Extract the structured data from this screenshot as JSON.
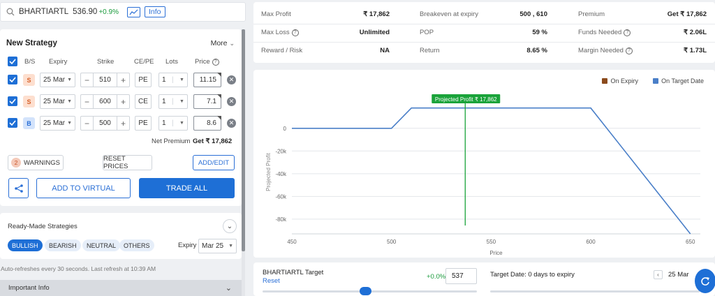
{
  "header": {
    "symbol": "BHARTIARTL",
    "ltp": "536.90",
    "change": "+0.9%",
    "info_label": "Info"
  },
  "strategy": {
    "title": "New Strategy",
    "more_label": "More",
    "columns": [
      "B/S",
      "Expiry",
      "Strike",
      "CE/PE",
      "Lots",
      "Price"
    ],
    "legs": [
      {
        "side": "S",
        "expiry": "25 Mar",
        "strike": "510",
        "type": "PE",
        "lots": "1",
        "price": "11.15"
      },
      {
        "side": "S",
        "expiry": "25 Mar",
        "strike": "600",
        "type": "CE",
        "lots": "1",
        "price": "7.1"
      },
      {
        "side": "B",
        "expiry": "25 Mar",
        "strike": "500",
        "type": "PE",
        "lots": "1",
        "price": "8.6"
      }
    ],
    "net_premium_label": "Net Premium",
    "net_premium_value": "Get ₹ 17,862",
    "warnings_count": "2",
    "warnings_label": "WARNINGS",
    "reset_prices_label": "RESET PRICES",
    "add_edit_label": "ADD/EDIT",
    "add_virtual_label": "ADD TO VIRTUAL",
    "trade_all_label": "TRADE ALL"
  },
  "ready_made": {
    "title": "Ready-Made Strategies",
    "filters": [
      "BULLISH",
      "BEARISH",
      "NEUTRAL",
      "OTHERS"
    ],
    "active_filter": "BULLISH",
    "expiry_label": "Expiry",
    "expiry_value": "Mar 25"
  },
  "refresh_text": "Auto-refreshes every 30 seconds. Last refresh at 10:39 AM",
  "important_info_label": "Important Info",
  "metrics": {
    "max_profit_label": "Max Profit",
    "max_profit": "₹ 17,862",
    "max_loss_label": "Max Loss",
    "max_loss": "Unlimited",
    "reward_risk_label": "Reward / Risk",
    "reward_risk": "NA",
    "breakeven_label": "Breakeven at expiry",
    "breakeven": "500 , 610",
    "pop_label": "POP",
    "pop": "59 %",
    "return_label": "Return",
    "return": "8.65 %",
    "premium_label": "Premium",
    "premium": "Get ₹ 17,862",
    "funds_label": "Funds Needed",
    "funds": "₹ 2.06L",
    "margin_label": "Margin Needed",
    "margin": "₹ 1.73L"
  },
  "chart_data": {
    "type": "line",
    "legend": [
      {
        "name": "On Expiry",
        "color": "#8b4a1c"
      },
      {
        "name": "On Target Date",
        "color": "#4a7fc8"
      }
    ],
    "series": [
      {
        "name": "On Target Date",
        "x": [
          450,
          500,
          510,
          600,
          650
        ],
        "y": [
          0,
          0,
          17862,
          17862,
          -93000
        ]
      }
    ],
    "xlabel": "Price",
    "ylabel": "Projected Profit",
    "x_ticks": [
      "450",
      "500",
      "550",
      "600",
      "650"
    ],
    "y_ticks": [
      "0",
      "-20k",
      "-40k",
      "-60k",
      "-80k"
    ],
    "xlim": [
      450,
      655
    ],
    "ylim": [
      -93000,
      22000
    ],
    "target_price": 537,
    "annotation": "Projected Profit ₹ 17,862",
    "annotation_color": "#1aa33a"
  },
  "target": {
    "title": "BHARTIARTL Target",
    "reset_label": "Reset",
    "change": "+0.0%",
    "value": "537",
    "slider_fraction": 0.48,
    "date_label": "Target Date: 0 days to expiry",
    "date_value": "25 Mar"
  }
}
